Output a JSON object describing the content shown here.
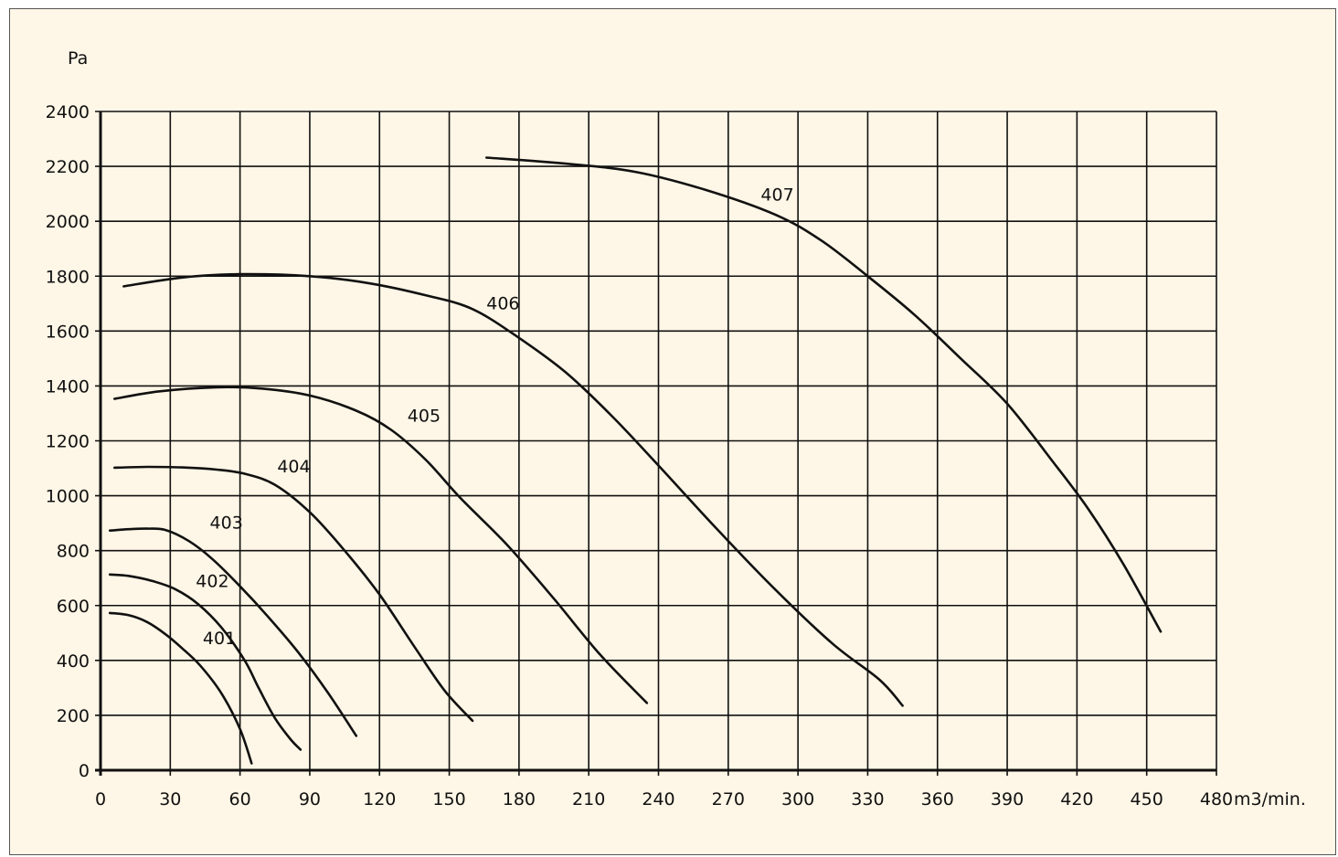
{
  "chart_data": {
    "type": "line",
    "title": "",
    "y_unit_label": "Pa",
    "x_unit_label": "m3/min.",
    "xlim": [
      0,
      480
    ],
    "ylim": [
      0,
      2400
    ],
    "x_ticks": [
      0,
      30,
      60,
      90,
      120,
      150,
      180,
      210,
      240,
      270,
      300,
      330,
      360,
      390,
      420,
      450,
      480
    ],
    "y_ticks": [
      0,
      200,
      400,
      600,
      800,
      1000,
      1200,
      1400,
      1600,
      1800,
      2000,
      2200,
      2400
    ],
    "grid": true,
    "colors": {
      "background": "#fef6e6",
      "line": "#111111",
      "grid": "#111111"
    },
    "series": [
      {
        "name": "401",
        "label_at": [
          44,
          460
        ],
        "points": [
          [
            4,
            573
          ],
          [
            12,
            565
          ],
          [
            20,
            540
          ],
          [
            28,
            495
          ],
          [
            35,
            445
          ],
          [
            43,
            380
          ],
          [
            52,
            280
          ],
          [
            60,
            150
          ],
          [
            65,
            25
          ]
        ]
      },
      {
        "name": "402",
        "label_at": [
          41,
          668
        ],
        "points": [
          [
            4,
            713
          ],
          [
            12,
            708
          ],
          [
            22,
            690
          ],
          [
            32,
            660
          ],
          [
            42,
            605
          ],
          [
            52,
            520
          ],
          [
            62,
            400
          ],
          [
            68,
            300
          ],
          [
            75,
            190
          ],
          [
            82,
            110
          ],
          [
            86,
            75
          ]
        ]
      },
      {
        "name": "403",
        "label_at": [
          47,
          880
        ],
        "points": [
          [
            4,
            873
          ],
          [
            12,
            878
          ],
          [
            20,
            880
          ],
          [
            28,
            875
          ],
          [
            38,
            835
          ],
          [
            48,
            770
          ],
          [
            60,
            670
          ],
          [
            72,
            560
          ],
          [
            85,
            430
          ],
          [
            98,
            280
          ],
          [
            110,
            125
          ]
        ]
      },
      {
        "name": "404",
        "label_at": [
          76,
          1085
        ],
        "points": [
          [
            6,
            1102
          ],
          [
            20,
            1105
          ],
          [
            35,
            1103
          ],
          [
            50,
            1095
          ],
          [
            62,
            1080
          ],
          [
            75,
            1040
          ],
          [
            90,
            940
          ],
          [
            105,
            800
          ],
          [
            120,
            640
          ],
          [
            135,
            450
          ],
          [
            148,
            290
          ],
          [
            160,
            180
          ]
        ]
      },
      {
        "name": "405",
        "label_at": [
          132,
          1270
        ],
        "points": [
          [
            6,
            1353
          ],
          [
            25,
            1380
          ],
          [
            50,
            1395
          ],
          [
            70,
            1390
          ],
          [
            90,
            1365
          ],
          [
            110,
            1310
          ],
          [
            125,
            1240
          ],
          [
            140,
            1130
          ],
          [
            155,
            990
          ],
          [
            175,
            820
          ],
          [
            195,
            625
          ],
          [
            215,
            420
          ],
          [
            235,
            245
          ]
        ]
      },
      {
        "name": "406",
        "label_at": [
          166,
          1680
        ],
        "points": [
          [
            10,
            1763
          ],
          [
            35,
            1795
          ],
          [
            60,
            1807
          ],
          [
            90,
            1800
          ],
          [
            115,
            1775
          ],
          [
            140,
            1730
          ],
          [
            160,
            1680
          ],
          [
            180,
            1575
          ],
          [
            200,
            1450
          ],
          [
            220,
            1290
          ],
          [
            240,
            1110
          ],
          [
            265,
            880
          ],
          [
            290,
            660
          ],
          [
            315,
            460
          ],
          [
            335,
            330
          ],
          [
            345,
            235
          ]
        ]
      },
      {
        "name": "407",
        "label_at": [
          284,
          2075
        ],
        "points": [
          [
            166,
            2232
          ],
          [
            200,
            2210
          ],
          [
            230,
            2180
          ],
          [
            260,
            2115
          ],
          [
            290,
            2025
          ],
          [
            310,
            1930
          ],
          [
            330,
            1800
          ],
          [
            350,
            1660
          ],
          [
            370,
            1500
          ],
          [
            390,
            1335
          ],
          [
            410,
            1120
          ],
          [
            425,
            950
          ],
          [
            440,
            750
          ],
          [
            456,
            505
          ]
        ]
      }
    ]
  }
}
